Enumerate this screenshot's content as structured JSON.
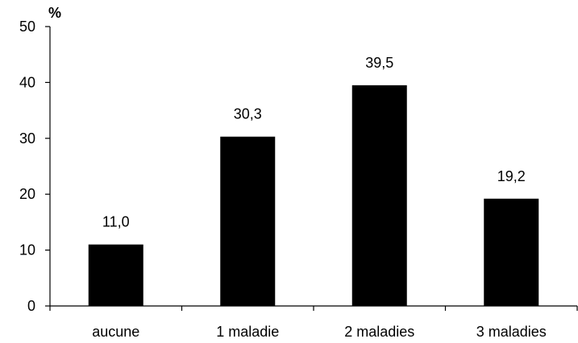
{
  "chart_data": {
    "type": "bar",
    "categories": [
      "aucune",
      "1 maladie",
      "2 maladies",
      "3 maladies"
    ],
    "values": [
      11.0,
      30.3,
      39.5,
      19.2
    ],
    "value_labels": [
      "11,0",
      "30,3",
      "39,5",
      "19,2"
    ],
    "title": "",
    "xlabel": "",
    "ylabel": "%",
    "ylim": [
      0,
      50
    ],
    "yticks": [
      0,
      10,
      20,
      30,
      40,
      50
    ],
    "ytick_labels": [
      "0",
      "10",
      "20",
      "30",
      "40",
      "50"
    ],
    "grid": false,
    "bar_color": "#000000"
  }
}
